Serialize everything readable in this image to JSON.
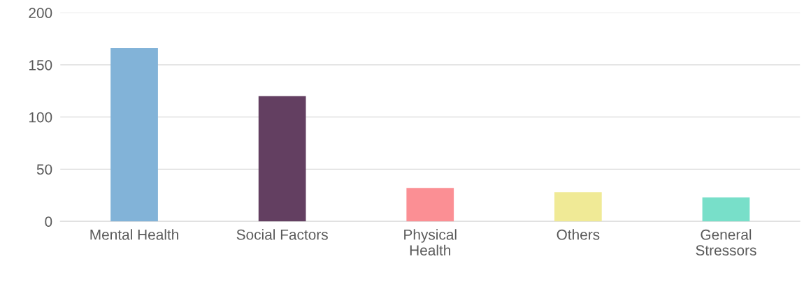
{
  "chart_data": {
    "type": "bar",
    "categories": [
      "Mental Health",
      "Social Factors",
      "Physical\nHealth",
      "Others",
      "General\nStressors"
    ],
    "values": [
      166,
      120,
      32,
      28,
      23
    ],
    "colors": [
      "#82b3d8",
      "#633f61",
      "#fb8f94",
      "#f0ea96",
      "#78dfc9"
    ],
    "ylim": [
      0,
      200
    ],
    "yticks": [
      0,
      50,
      100,
      150,
      200
    ],
    "grid": "y"
  }
}
